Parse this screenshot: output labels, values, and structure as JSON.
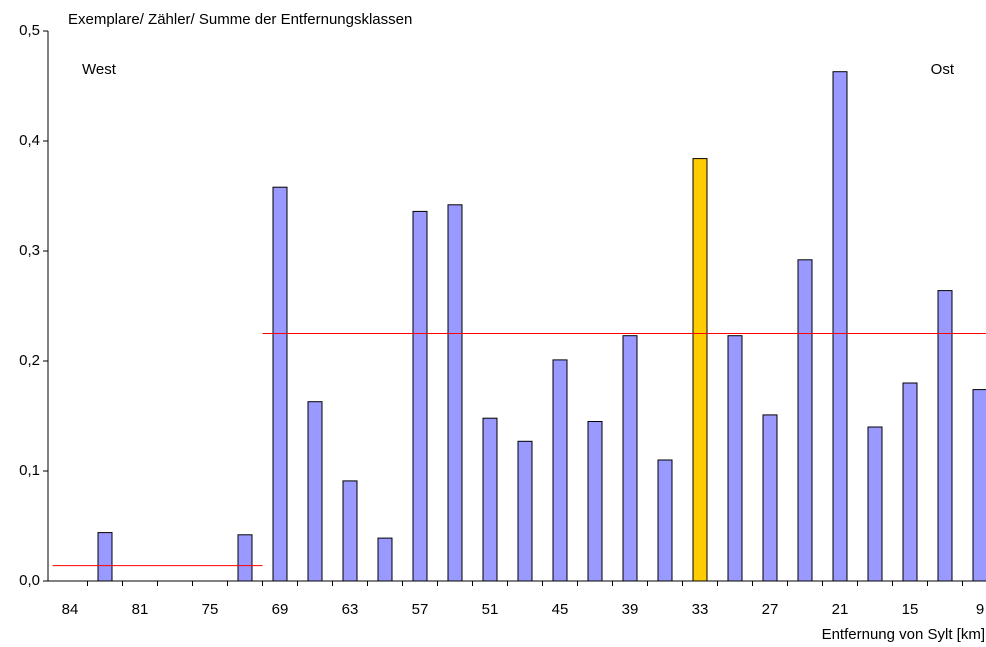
{
  "chart_data": {
    "type": "bar",
    "title": "Exemplare/ Zähler/ Summe der Entfernungsklassen",
    "x_label": "Entfernung von Sylt [km]",
    "annotations": [
      "West",
      "Ost"
    ],
    "categories": [
      "84",
      null,
      "81",
      null,
      "75",
      null,
      "69",
      null,
      "63",
      null,
      "57",
      null,
      "51",
      null,
      "45",
      null,
      "39",
      null,
      "33",
      null,
      "27",
      null,
      "21",
      null,
      "15",
      null,
      "9"
    ],
    "values": [
      null,
      0.044,
      null,
      null,
      null,
      0.042,
      0.358,
      0.163,
      0.091,
      0.039,
      0.336,
      0.342,
      0.148,
      0.127,
      0.201,
      0.145,
      0.223,
      0.11,
      0.384,
      0.223,
      0.151,
      0.292,
      0.463,
      0.14,
      0.18,
      0.264,
      0.174
    ],
    "color": "#9999ff",
    "highlight": {
      "index": 18,
      "color": "#ffcc00"
    },
    "reference_lines": [
      {
        "value": 0.014,
        "from": 0,
        "to": 5,
        "color": "#ff0000"
      },
      {
        "value": 0.225,
        "from": 6,
        "to": 26,
        "color": "#ff0000"
      }
    ],
    "ylim": [
      0,
      0.5
    ],
    "yticks": [
      {
        "value": 0,
        "label": "0,0"
      },
      {
        "value": 0.1,
        "label": "0,1"
      },
      {
        "value": 0.2,
        "label": "0,2"
      },
      {
        "value": 0.3,
        "label": "0,3"
      },
      {
        "value": 0.4,
        "label": "0,4"
      },
      {
        "value": 0.5,
        "label": "0,5"
      }
    ],
    "grid": false
  }
}
